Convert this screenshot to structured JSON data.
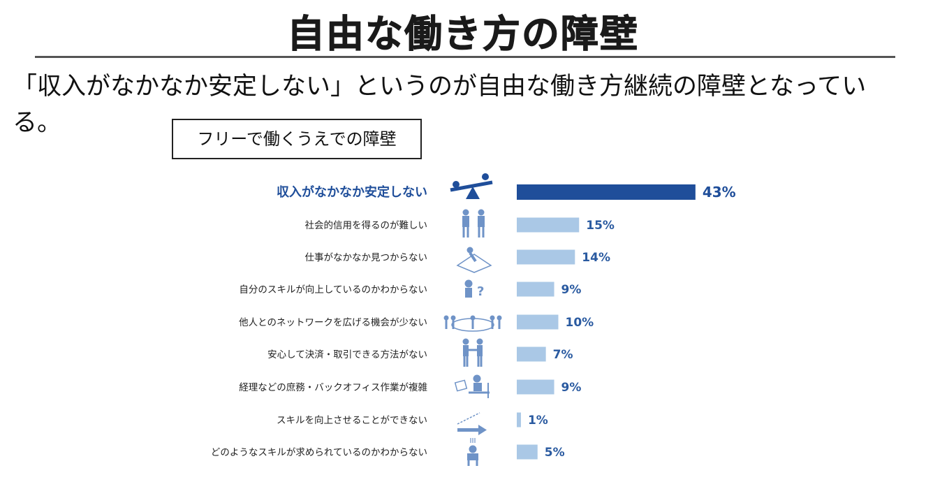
{
  "slide": {
    "title": "自由な働き方の障壁",
    "headline": "「収入がなかなか安定しない」というのが自由な働き方継続の障壁となっている。"
  },
  "chart_data": {
    "type": "bar",
    "orientation": "horizontal",
    "title": "フリーで働くうえでの障壁",
    "unit": "%",
    "highlight_index": 0,
    "colors": {
      "highlight": "#1f4e9a",
      "default": "#aac8e6"
    },
    "categories": [
      "収入がなかなか安定しない",
      "社会的信用を得るのが難しい",
      "仕事がなかなか見つからない",
      "自分のスキルが向上しているのかわからない",
      "他人とのネットワークを広げる機会が少ない",
      "安心して決済・取引できる方法がない",
      "経理などの庶務・バックオフィス作業が複雑",
      "スキルを向上させることができない",
      "どのようなスキルが求められているのかわからない"
    ],
    "values": [
      43,
      15,
      14,
      9,
      10,
      7,
      9,
      1,
      5
    ],
    "value_labels": [
      "43%",
      "15%",
      "14%",
      "9%",
      "10%",
      "7%",
      "9%",
      "1%",
      "5%"
    ],
    "icons": [
      "seesaw-icon",
      "people-icon",
      "desk-work-icon",
      "question-person-icon",
      "network-icon",
      "handshake-icon",
      "office-work-icon",
      "arrow-up-icon",
      "confused-person-icon"
    ]
  }
}
